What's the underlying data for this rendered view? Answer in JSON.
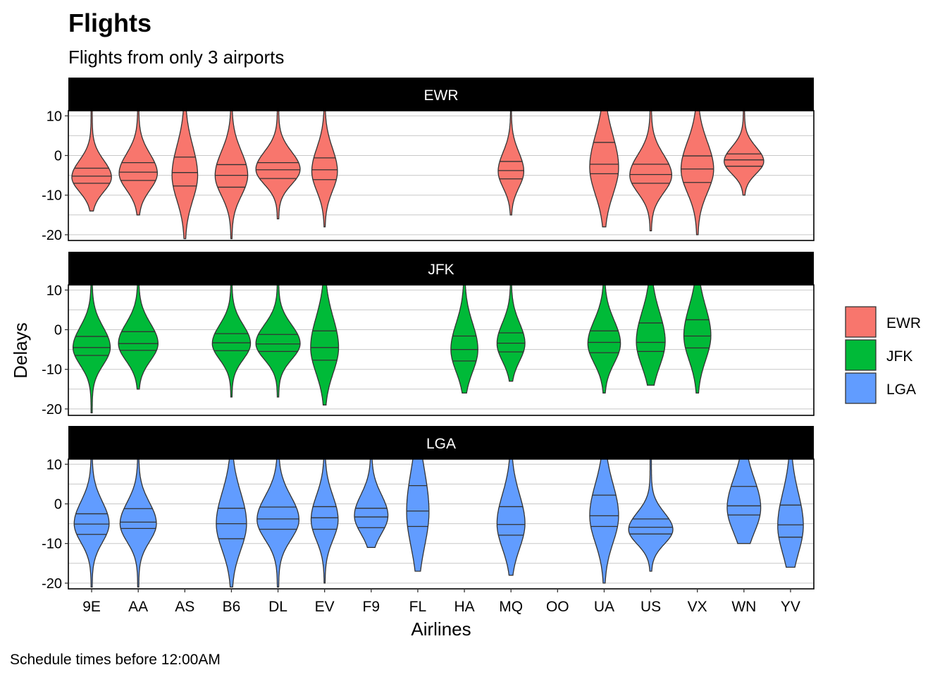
{
  "chart_data": {
    "type": "violin",
    "title": "Flights",
    "subtitle": "Flights from only 3 airports",
    "caption": "Schedule times before 12:00AM",
    "xlabel": "Airlines",
    "ylabel": "Delays",
    "ylim": [
      -21,
      11
    ],
    "yticks": [
      -20,
      -10,
      0,
      10
    ],
    "grid": "horizontal",
    "legend": {
      "position": "right",
      "items": [
        "EWR",
        "JFK",
        "LGA"
      ]
    },
    "quantile_lines": [
      0.25,
      0.5,
      0.75
    ],
    "categories": [
      "9E",
      "AA",
      "AS",
      "B6",
      "DL",
      "EV",
      "F9",
      "FL",
      "HA",
      "MQ",
      "OO",
      "UA",
      "US",
      "VX",
      "WN",
      "YV"
    ],
    "facets": [
      {
        "name": "EWR",
        "color": "#F8766D",
        "violins": [
          {
            "carrier": "9E",
            "min": -14,
            "max": 11,
            "q1": -7,
            "median": -5.2,
            "q3": -3.2,
            "mode": -5.5,
            "halfwidth": 0.85
          },
          {
            "carrier": "AA",
            "min": -15,
            "max": 11,
            "q1": -6.3,
            "median": -4.2,
            "q3": -1.8,
            "mode": -4.5,
            "halfwidth": 0.82
          },
          {
            "carrier": "AS",
            "min": -21,
            "max": 11,
            "q1": -7.7,
            "median": -4.3,
            "q3": -0.4,
            "mode": -5,
            "halfwidth": 0.55
          },
          {
            "carrier": "B6",
            "min": -21,
            "max": 11,
            "q1": -8,
            "median": -5,
            "q3": -2.3,
            "mode": -5,
            "halfwidth": 0.7
          },
          {
            "carrier": "DL",
            "min": -16,
            "max": 11,
            "q1": -5.8,
            "median": -3.6,
            "q3": -1.8,
            "mode": -3.5,
            "halfwidth": 0.95
          },
          {
            "carrier": "EV",
            "min": -18,
            "max": 11,
            "q1": -6.1,
            "median": -3.6,
            "q3": -0.6,
            "mode": -4,
            "halfwidth": 0.55
          },
          {
            "carrier": "MQ",
            "min": -15,
            "max": 11,
            "q1": -5.9,
            "median": -3.8,
            "q3": -1.5,
            "mode": -4,
            "halfwidth": 0.55
          },
          {
            "carrier": "UA",
            "min": -18,
            "max": 11,
            "q1": -4.6,
            "median": -2.2,
            "q3": 3.3,
            "mode": -3,
            "halfwidth": 0.62
          },
          {
            "carrier": "US",
            "min": -19,
            "max": 11,
            "q1": -7,
            "median": -4.8,
            "q3": -2.2,
            "mode": -5,
            "halfwidth": 0.9
          },
          {
            "carrier": "VX",
            "min": -20,
            "max": 11,
            "q1": -6.8,
            "median": -3.4,
            "q3": -0.1,
            "mode": -3.5,
            "halfwidth": 0.7
          },
          {
            "carrier": "WN",
            "min": -10,
            "max": 11,
            "q1": -2.7,
            "median": -1.1,
            "q3": 0.4,
            "mode": -1.5,
            "halfwidth": 0.85
          }
        ]
      },
      {
        "name": "JFK",
        "color": "#00BA38",
        "violins": [
          {
            "carrier": "9E",
            "min": -21,
            "max": 11,
            "q1": -6.5,
            "median": -4.5,
            "q3": -1.7,
            "mode": -4.5,
            "halfwidth": 0.8
          },
          {
            "carrier": "AA",
            "min": -15,
            "max": 11,
            "q1": -5.2,
            "median": -3.5,
            "q3": -0.5,
            "mode": -3.5,
            "halfwidth": 0.85
          },
          {
            "carrier": "B6",
            "min": -17,
            "max": 11,
            "q1": -5.3,
            "median": -3.3,
            "q3": -1,
            "mode": -3.5,
            "halfwidth": 0.82
          },
          {
            "carrier": "DL",
            "min": -17,
            "max": 11,
            "q1": -5.5,
            "median": -3.6,
            "q3": -1.2,
            "mode": -3.5,
            "halfwidth": 0.95
          },
          {
            "carrier": "EV",
            "min": -19,
            "max": 11,
            "q1": -7.7,
            "median": -4.5,
            "q3": -0.3,
            "mode": -4.5,
            "halfwidth": 0.6
          },
          {
            "carrier": "HA",
            "min": -16,
            "max": 11,
            "q1": -7.9,
            "median": -5,
            "q3": -1.6,
            "mode": -5,
            "halfwidth": 0.58
          },
          {
            "carrier": "MQ",
            "min": -13,
            "max": 11,
            "q1": -5.6,
            "median": -3.4,
            "q3": -0.8,
            "mode": -3.5,
            "halfwidth": 0.6
          },
          {
            "carrier": "UA",
            "min": -16,
            "max": 11,
            "q1": -5.8,
            "median": -3.2,
            "q3": -0.3,
            "mode": -3.5,
            "halfwidth": 0.7
          },
          {
            "carrier": "US",
            "min": -14,
            "max": 11,
            "q1": -5.5,
            "median": -3.2,
            "q3": 1.7,
            "mode": -3,
            "halfwidth": 0.62
          },
          {
            "carrier": "VX",
            "min": -16,
            "max": 11,
            "q1": -4.6,
            "median": -1.6,
            "q3": 2.5,
            "mode": -1.5,
            "halfwidth": 0.58
          }
        ]
      },
      {
        "name": "LGA",
        "color": "#619CFF",
        "violins": [
          {
            "carrier": "9E",
            "min": -21,
            "max": 11,
            "q1": -7.7,
            "median": -5.1,
            "q3": -2.5,
            "mode": -5,
            "halfwidth": 0.75
          },
          {
            "carrier": "AA",
            "min": -21,
            "max": 11,
            "q1": -6.2,
            "median": -4.6,
            "q3": -1.2,
            "mode": -5,
            "halfwidth": 0.78
          },
          {
            "carrier": "B6",
            "min": -21,
            "max": 11,
            "q1": -8.8,
            "median": -5,
            "q3": -1.1,
            "mode": -5,
            "halfwidth": 0.65
          },
          {
            "carrier": "DL",
            "min": -21,
            "max": 11,
            "q1": -6.4,
            "median": -3.8,
            "q3": -0.8,
            "mode": -4,
            "halfwidth": 0.9
          },
          {
            "carrier": "EV",
            "min": -20,
            "max": 11,
            "q1": -6.4,
            "median": -3.5,
            "q3": -0.7,
            "mode": -4,
            "halfwidth": 0.58
          },
          {
            "carrier": "F9",
            "min": -11,
            "max": 11,
            "q1": -6,
            "median": -3.3,
            "q3": -1.1,
            "mode": -3,
            "halfwidth": 0.72
          },
          {
            "carrier": "FL",
            "min": -17,
            "max": 11,
            "q1": -5.7,
            "median": -1.8,
            "q3": 4.6,
            "mode": -2,
            "halfwidth": 0.48
          },
          {
            "carrier": "MQ",
            "min": -18,
            "max": 11,
            "q1": -7.9,
            "median": -5.2,
            "q3": -0.7,
            "mode": -5,
            "halfwidth": 0.6
          },
          {
            "carrier": "UA",
            "min": -20,
            "max": 11,
            "q1": -5.7,
            "median": -3,
            "q3": 2.2,
            "mode": -3,
            "halfwidth": 0.62
          },
          {
            "carrier": "US",
            "min": -17,
            "max": 11,
            "q1": -7.6,
            "median": -5.9,
            "q3": -3.8,
            "mode": -6.5,
            "halfwidth": 0.95
          },
          {
            "carrier": "WN",
            "min": -10,
            "max": 11,
            "q1": -2.8,
            "median": -0.5,
            "q3": 4.4,
            "mode": -1,
            "halfwidth": 0.72
          },
          {
            "carrier": "YV",
            "min": -16,
            "max": 11,
            "q1": -8.4,
            "median": -5.3,
            "q3": -0.3,
            "mode": -5.5,
            "halfwidth": 0.55
          }
        ]
      }
    ]
  }
}
